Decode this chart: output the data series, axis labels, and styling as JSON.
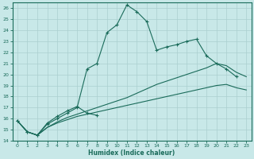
{
  "xlabel": "Humidex (Indice chaleur)",
  "bg_color": "#c8e8e8",
  "grid_color": "#aacfcf",
  "line_color": "#1a6b5a",
  "xlim": [
    -0.5,
    23.5
  ],
  "ylim": [
    14,
    26.5
  ],
  "xticks": [
    0,
    1,
    2,
    3,
    4,
    5,
    6,
    7,
    8,
    9,
    10,
    11,
    12,
    13,
    14,
    15,
    16,
    17,
    18,
    19,
    20,
    21,
    22,
    23
  ],
  "yticks": [
    14,
    15,
    16,
    17,
    18,
    19,
    20,
    21,
    22,
    23,
    24,
    25,
    26
  ],
  "line1_x": [
    0,
    1,
    2,
    3,
    4,
    5,
    6,
    7,
    8,
    9,
    10,
    11,
    12,
    13,
    14,
    15,
    16,
    17,
    18,
    19,
    20,
    21,
    22,
    23
  ],
  "line1_y": [
    15.8,
    14.8,
    14.5,
    15.2,
    15.6,
    15.9,
    16.2,
    16.4,
    16.6,
    16.8,
    17.0,
    17.2,
    17.4,
    17.6,
    17.8,
    18.0,
    18.2,
    18.4,
    18.6,
    18.8,
    19.0,
    19.1,
    18.8,
    18.6
  ],
  "line2_x": [
    0,
    1,
    2,
    3,
    4,
    5,
    6,
    7,
    8,
    9,
    10,
    11,
    12,
    13,
    14,
    15,
    16,
    17,
    18,
    19,
    20,
    21,
    22,
    23
  ],
  "line2_y": [
    15.8,
    14.8,
    14.5,
    15.2,
    15.7,
    16.1,
    16.4,
    16.7,
    17.0,
    17.3,
    17.6,
    17.9,
    18.3,
    18.7,
    19.1,
    19.4,
    19.7,
    20.0,
    20.3,
    20.6,
    21.0,
    20.8,
    20.2,
    19.8
  ],
  "line3_x": [
    0,
    1,
    2,
    3,
    4,
    5,
    6,
    7,
    8,
    9,
    10,
    11,
    12,
    13,
    14,
    15,
    16,
    17,
    18,
    19,
    20,
    21,
    22,
    23
  ],
  "line3_y": [
    15.8,
    14.8,
    14.5,
    15.5,
    16.0,
    16.5,
    17.0,
    20.5,
    21.0,
    23.8,
    24.5,
    26.3,
    25.7,
    24.8,
    22.2,
    22.5,
    22.7,
    23.0,
    23.2,
    21.7,
    21.0,
    20.5,
    19.8,
    null
  ],
  "line4_x": [
    0,
    1,
    2,
    3,
    4,
    5,
    6,
    7,
    8
  ],
  "line4_y": [
    15.8,
    14.8,
    14.5,
    15.6,
    16.2,
    16.7,
    17.1,
    16.5,
    16.3
  ]
}
